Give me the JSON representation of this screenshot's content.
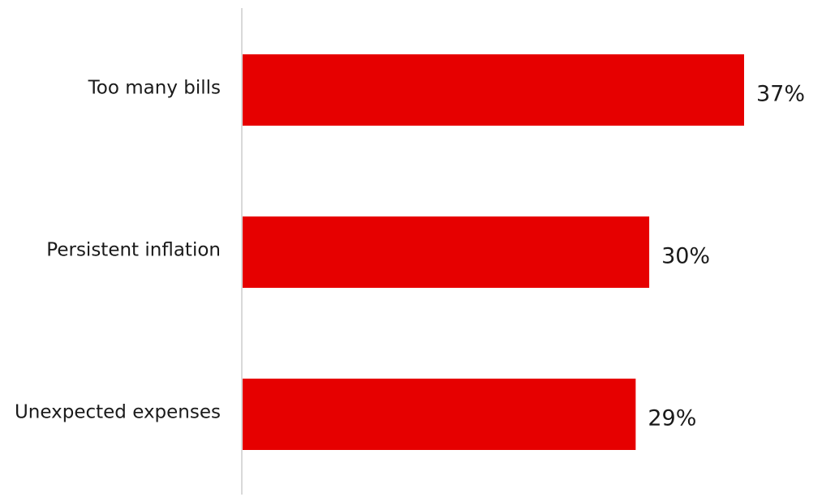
{
  "chart_data": {
    "type": "bar",
    "orientation": "horizontal",
    "categories": [
      "Too many bills",
      "Persistent inflation",
      "Unexpected expenses"
    ],
    "values": [
      37,
      30,
      29
    ],
    "value_labels": [
      "37%",
      "30%",
      "29%"
    ],
    "unit": "%",
    "xlim": [
      0,
      37
    ],
    "grid": false,
    "legend": "none",
    "bar_color": "#E60000",
    "axis_color": "#d9d9d9"
  }
}
